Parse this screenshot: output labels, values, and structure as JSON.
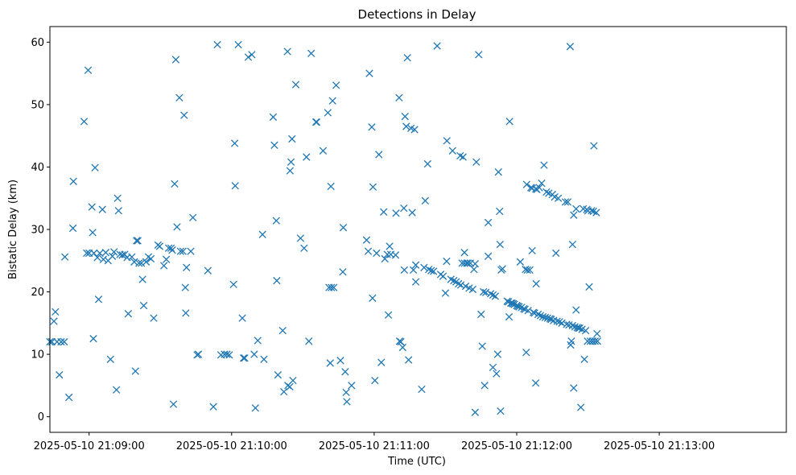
{
  "chart_data": {
    "type": "scatter",
    "title": "Detections in Delay",
    "xlabel": "Time (UTC)",
    "ylabel": "Bistatic Delay (km)",
    "marker": "x",
    "color": "#1f77b4",
    "x_unit": "seconds after 2025-05-10 21:08:00 UTC",
    "xlim": [
      43.5,
      353.5
    ],
    "ylim": [
      -2.5,
      62.5
    ],
    "x_ticks": [
      {
        "value": 60,
        "label": "2025-05-10 21:09:00"
      },
      {
        "value": 120,
        "label": "2025-05-10 21:10:00"
      },
      {
        "value": 180,
        "label": "2025-05-10 21:11:00"
      },
      {
        "value": 240,
        "label": "2025-05-10 21:12:00"
      },
      {
        "value": 300,
        "label": "2025-05-10 21:13:00"
      }
    ],
    "y_ticks": [
      {
        "value": 0,
        "label": "0"
      },
      {
        "value": 10,
        "label": "10"
      },
      {
        "value": 20,
        "label": "20"
      },
      {
        "value": 30,
        "label": "30"
      },
      {
        "value": 40,
        "label": "40"
      },
      {
        "value": 50,
        "label": "50"
      },
      {
        "value": 60,
        "label": "60"
      }
    ],
    "series": [
      {
        "name": "Detections",
        "points": [
          [
            43.5,
            12
          ],
          [
            44.3,
            12
          ],
          [
            45.2,
            15.3
          ],
          [
            45.8,
            16.8
          ],
          [
            46.5,
            12
          ],
          [
            47.5,
            6.7
          ],
          [
            48.2,
            12
          ],
          [
            49.5,
            12
          ],
          [
            49.8,
            25.6
          ],
          [
            51.5,
            3.1
          ],
          [
            53.2,
            30.2
          ],
          [
            53.4,
            37.7
          ],
          [
            57.9,
            47.3
          ],
          [
            59.6,
            55.5
          ],
          [
            59,
            26.2
          ],
          [
            60,
            26.2
          ],
          [
            61.2,
            33.6
          ],
          [
            61.5,
            29.5
          ],
          [
            61.8,
            12.5
          ],
          [
            62,
            26.2
          ],
          [
            62.5,
            39.9
          ],
          [
            63.5,
            25.5
          ],
          [
            64,
            18.8
          ],
          [
            64.5,
            26.2
          ],
          [
            65.6,
            33.2
          ],
          [
            66,
            25.2
          ],
          [
            67,
            26.3
          ],
          [
            68,
            25
          ],
          [
            69,
            9.2
          ],
          [
            69.8,
            25.7
          ],
          [
            70.5,
            26.4
          ],
          [
            71.5,
            4.3
          ],
          [
            72,
            35
          ],
          [
            72.4,
            33
          ],
          [
            73,
            26
          ],
          [
            74,
            25.9
          ],
          [
            75,
            26
          ],
          [
            76,
            25.5
          ],
          [
            76.5,
            16.5
          ],
          [
            78,
            25.6
          ],
          [
            79,
            24.8
          ],
          [
            79.5,
            7.3
          ],
          [
            80,
            28.2
          ],
          [
            80.5,
            28.2
          ],
          [
            81,
            24.6
          ],
          [
            82,
            24.6
          ],
          [
            82.5,
            22
          ],
          [
            83,
            17.8
          ],
          [
            84,
            24.8
          ],
          [
            85,
            25.6
          ],
          [
            86,
            25.3
          ],
          [
            87.2,
            15.8
          ],
          [
            89,
            27.5
          ],
          [
            89.7,
            27.3
          ],
          [
            91.5,
            24.2
          ],
          [
            92.5,
            25.2
          ],
          [
            93.5,
            27
          ],
          [
            94.5,
            27
          ],
          [
            95,
            26.7
          ],
          [
            95.5,
            2
          ],
          [
            96,
            37.3
          ],
          [
            96.5,
            57.2
          ],
          [
            97,
            30.4
          ],
          [
            98,
            51.1
          ],
          [
            98.5,
            26.5
          ],
          [
            99.5,
            26.5
          ],
          [
            100,
            48.3
          ],
          [
            100.5,
            20.7
          ],
          [
            100.7,
            16.6
          ],
          [
            101,
            23.9
          ],
          [
            102.8,
            26.5
          ],
          [
            103.7,
            31.9
          ],
          [
            105.5,
            9.9
          ],
          [
            106,
            10
          ],
          [
            110,
            23.4
          ],
          [
            112.3,
            1.6
          ],
          [
            114,
            59.6
          ],
          [
            115.5,
            9.9
          ],
          [
            117,
            10
          ],
          [
            118,
            10
          ],
          [
            119,
            9.9
          ],
          [
            120.8,
            21.2
          ],
          [
            121.3,
            43.8
          ],
          [
            121.5,
            37
          ],
          [
            122.8,
            59.6
          ],
          [
            124.5,
            15.8
          ],
          [
            125,
            9.4
          ],
          [
            125.5,
            9.4
          ],
          [
            127,
            57.6
          ],
          [
            128.5,
            58
          ],
          [
            129.5,
            10
          ],
          [
            130,
            1.4
          ],
          [
            131,
            12.2
          ],
          [
            133,
            29.2
          ],
          [
            133.6,
            9.2
          ],
          [
            137.5,
            48
          ],
          [
            138,
            43.5
          ],
          [
            138.8,
            31.4
          ],
          [
            139,
            21.8
          ],
          [
            139.5,
            6.7
          ],
          [
            141.5,
            13.8
          ],
          [
            142,
            4
          ],
          [
            143.5,
            58.5
          ],
          [
            143.7,
            5
          ],
          [
            144.5,
            4.8
          ],
          [
            144.6,
            39.4
          ],
          [
            145,
            40.8
          ],
          [
            145.4,
            44.5
          ],
          [
            145.8,
            5.8
          ],
          [
            147,
            53.2
          ],
          [
            149,
            28.6
          ],
          [
            150.5,
            27
          ],
          [
            151.5,
            41.6
          ],
          [
            152.5,
            12.1
          ],
          [
            153.5,
            58.2
          ],
          [
            155.5,
            47.2
          ],
          [
            155.8,
            47.2
          ],
          [
            158.5,
            42.6
          ],
          [
            160.5,
            48.7
          ],
          [
            161,
            20.7
          ],
          [
            161.5,
            8.6
          ],
          [
            161.8,
            36.9
          ],
          [
            162,
            20.7
          ],
          [
            162.5,
            50.6
          ],
          [
            163,
            20.7
          ],
          [
            164,
            53.1
          ],
          [
            165.8,
            9
          ],
          [
            166.8,
            23.2
          ],
          [
            167,
            30.3
          ],
          [
            167.8,
            7.2
          ],
          [
            168.2,
            3.9
          ],
          [
            168.5,
            2.4
          ],
          [
            170.5,
            5
          ],
          [
            176.8,
            28.3
          ],
          [
            177.5,
            26.5
          ],
          [
            178,
            55
          ],
          [
            179,
            46.4
          ],
          [
            179.3,
            19
          ],
          [
            179.5,
            36.8
          ],
          [
            180.3,
            5.8
          ],
          [
            181,
            26.2
          ],
          [
            182,
            42
          ],
          [
            183,
            8.7
          ],
          [
            184,
            32.8
          ],
          [
            184.5,
            25.3
          ],
          [
            185.5,
            26
          ],
          [
            186,
            16.3
          ],
          [
            186.5,
            27.3
          ],
          [
            187,
            26
          ],
          [
            189,
            25.9
          ],
          [
            189.2,
            32.6
          ],
          [
            190.5,
            51.1
          ],
          [
            190.7,
            12.1
          ],
          [
            191.2,
            12
          ],
          [
            192,
            11.1
          ],
          [
            192.5,
            33.4
          ],
          [
            192.7,
            23.5
          ],
          [
            193,
            48.1
          ],
          [
            193.5,
            46.5
          ],
          [
            194,
            57.5
          ],
          [
            194.5,
            9.1
          ],
          [
            195.5,
            46.2
          ],
          [
            196,
            32.7
          ],
          [
            196.5,
            23.5
          ],
          [
            197,
            46
          ],
          [
            197.5,
            21.6
          ],
          [
            197.5,
            24.3
          ],
          [
            200,
            4.4
          ],
          [
            201,
            23.9
          ],
          [
            201.5,
            34.6
          ],
          [
            202.5,
            40.5
          ],
          [
            203,
            23.6
          ],
          [
            204,
            23.4
          ],
          [
            205,
            23.3
          ],
          [
            206.5,
            59.4
          ],
          [
            208,
            22.8
          ],
          [
            209,
            22.5
          ],
          [
            210,
            19.8
          ],
          [
            210.5,
            24.9
          ],
          [
            210.6,
            44.2
          ],
          [
            212.3,
            22
          ],
          [
            213,
            42.6
          ],
          [
            213.5,
            21.8
          ],
          [
            214.5,
            21.6
          ],
          [
            215.5,
            21.3
          ],
          [
            216.5,
            21.1
          ],
          [
            216.2,
            41.8
          ],
          [
            217,
            24.6
          ],
          [
            217.4,
            41.6
          ],
          [
            218,
            24.6
          ],
          [
            218,
            26.3
          ],
          [
            218.5,
            20.9
          ],
          [
            219,
            24.6
          ],
          [
            219.5,
            24.6
          ],
          [
            220,
            20.6
          ],
          [
            220.5,
            24.6
          ],
          [
            221.5,
            20.4
          ],
          [
            222,
            23.6
          ],
          [
            222.5,
            24.5
          ],
          [
            222.5,
            0.7
          ],
          [
            223,
            40.8
          ],
          [
            224,
            58
          ],
          [
            225,
            16.4
          ],
          [
            225.5,
            11.3
          ],
          [
            226,
            20
          ],
          [
            226.5,
            5
          ],
          [
            227,
            19.9
          ],
          [
            228,
            31.1
          ],
          [
            228,
            25.7
          ],
          [
            229,
            19.7
          ],
          [
            230,
            19.5
          ],
          [
            230,
            7.9
          ],
          [
            231,
            19.3
          ],
          [
            231.5,
            6.9
          ],
          [
            232,
            10
          ],
          [
            232.3,
            39.2
          ],
          [
            232.8,
            32.9
          ],
          [
            233,
            27.6
          ],
          [
            233.5,
            23.5
          ],
          [
            233.2,
            0.9
          ],
          [
            234,
            23.7
          ],
          [
            236,
            18.5
          ],
          [
            236.5,
            18.4
          ],
          [
            237,
            47.3
          ],
          [
            236.8,
            16
          ],
          [
            237.5,
            18.2
          ],
          [
            238,
            18.2
          ],
          [
            238.5,
            18.1
          ],
          [
            239,
            18
          ],
          [
            240,
            17.8
          ],
          [
            240.5,
            17.7
          ],
          [
            241,
            17.6
          ],
          [
            241.5,
            24.8
          ],
          [
            242,
            17.5
          ],
          [
            243,
            17.3
          ],
          [
            243.5,
            17.2
          ],
          [
            243.7,
            23.6
          ],
          [
            244.5,
            23.5
          ],
          [
            244,
            10.3
          ],
          [
            244.2,
            37.2
          ],
          [
            244.8,
            17
          ],
          [
            245.5,
            23.5
          ],
          [
            246,
            36.7
          ],
          [
            246.5,
            36.6
          ],
          [
            246.5,
            26.6
          ],
          [
            247,
            16.7
          ],
          [
            247.5,
            16.6
          ],
          [
            248,
            5.4
          ],
          [
            248,
            36.5
          ],
          [
            248.2,
            21.3
          ],
          [
            248.5,
            36.4
          ],
          [
            249,
            16.4
          ],
          [
            249.5,
            36.7
          ],
          [
            250,
            16.2
          ],
          [
            250.5,
            37.4
          ],
          [
            251,
            16
          ],
          [
            251.5,
            40.3
          ],
          [
            252,
            15.9
          ],
          [
            252.5,
            36
          ],
          [
            253,
            15.8
          ],
          [
            253.5,
            35.8
          ],
          [
            254,
            15.7
          ],
          [
            254.5,
            15.6
          ],
          [
            255,
            35.6
          ],
          [
            255.5,
            15.4
          ],
          [
            256,
            35.2
          ],
          [
            256.5,
            26.2
          ],
          [
            257,
            15.3
          ],
          [
            257.5,
            35
          ],
          [
            258,
            15.2
          ],
          [
            259,
            15
          ],
          [
            260.5,
            34.4
          ],
          [
            261,
            14.8
          ],
          [
            261.5,
            34.4
          ],
          [
            262,
            14.7
          ],
          [
            262.5,
            59.3
          ],
          [
            262.7,
            11.5
          ],
          [
            263,
            12.1
          ],
          [
            263.5,
            14.6
          ],
          [
            263.5,
            27.6
          ],
          [
            264,
            4.6
          ],
          [
            264,
            32.3
          ],
          [
            264.5,
            14.4
          ],
          [
            265,
            33.3
          ],
          [
            265,
            17.1
          ],
          [
            265.5,
            14.3
          ],
          [
            266,
            14.2
          ],
          [
            266.5,
            14.2
          ],
          [
            267,
            1.5
          ],
          [
            267.5,
            14
          ],
          [
            268,
            33.3
          ],
          [
            268.5,
            9.2
          ],
          [
            269,
            13.8
          ],
          [
            269.5,
            33.2
          ],
          [
            269.8,
            12.1
          ],
          [
            270,
            33
          ],
          [
            270.5,
            20.8
          ],
          [
            271,
            12.1
          ],
          [
            271.5,
            33
          ],
          [
            272,
            12.1
          ],
          [
            272.3,
            32.9
          ],
          [
            272.5,
            43.4
          ],
          [
            273,
            12.1
          ],
          [
            273.5,
            32.7
          ],
          [
            273.8,
            13.3
          ],
          [
            274,
            12.1
          ]
        ]
      }
    ]
  }
}
